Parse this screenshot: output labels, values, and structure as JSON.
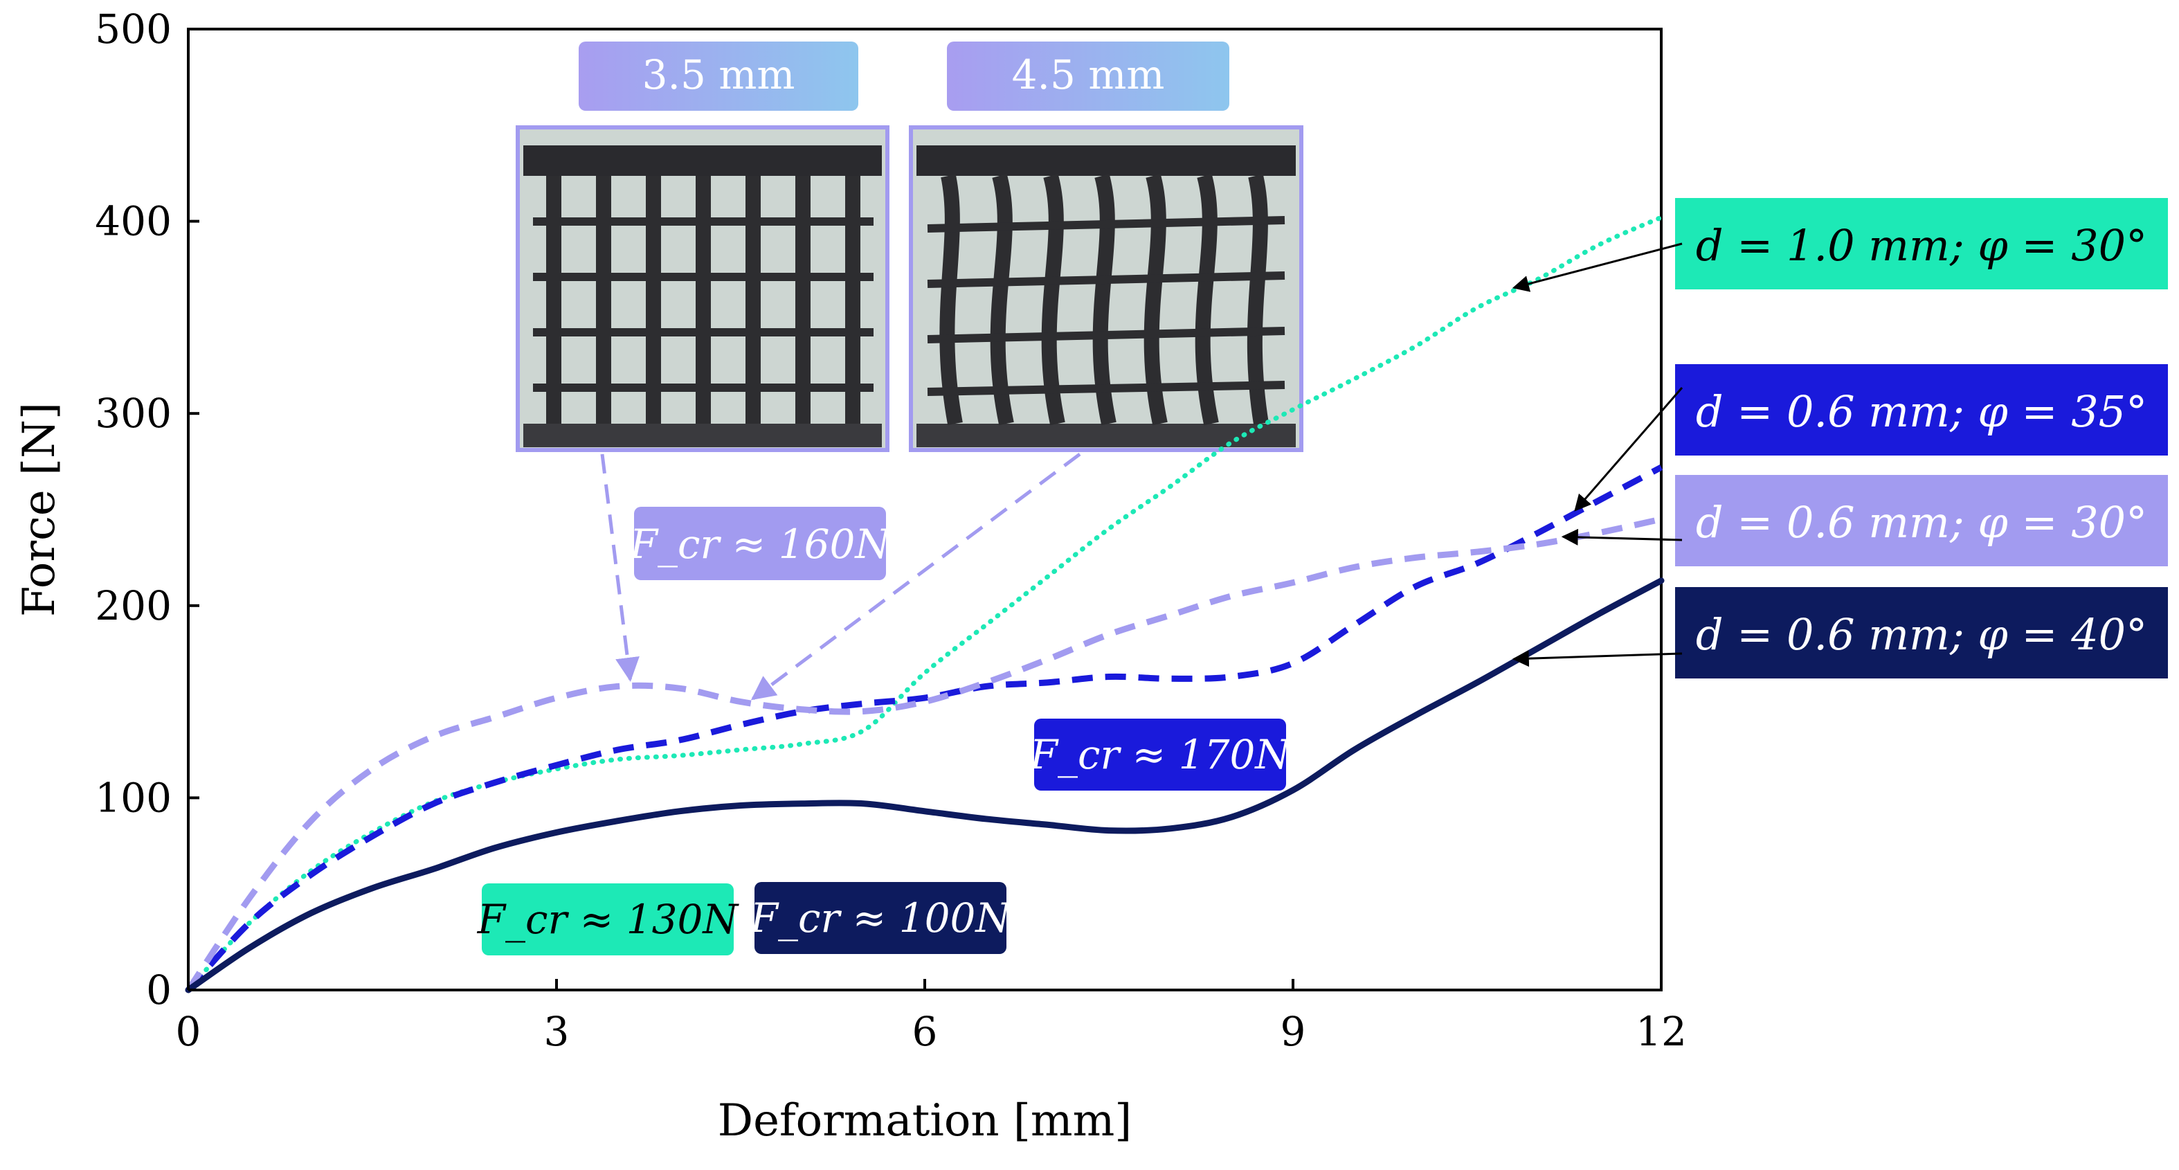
{
  "chart_data": {
    "type": "line",
    "xlabel": "Deformation [mm]",
    "ylabel": "Force [N]",
    "xlim": [
      0,
      12
    ],
    "ylim": [
      0,
      500
    ],
    "xticks": [
      0,
      3,
      6,
      9,
      12
    ],
    "yticks": [
      0,
      100,
      200,
      300,
      400,
      500
    ],
    "grid": false,
    "series": [
      {
        "name": "d = 1.0 mm; φ = 30°",
        "color": "#1de9b6",
        "style": "dotted",
        "x": [
          0,
          0.5,
          1,
          1.5,
          2,
          2.5,
          3,
          3.5,
          4,
          4.5,
          5,
          5.5,
          6,
          6.5,
          7,
          7.5,
          8,
          8.5,
          9,
          9.5,
          10,
          10.5,
          11,
          11.5,
          12
        ],
        "y": [
          0,
          35,
          62,
          82,
          98,
          108,
          115,
          120,
          122,
          125,
          128,
          135,
          165,
          190,
          215,
          240,
          262,
          285,
          302,
          318,
          335,
          355,
          370,
          388,
          402
        ]
      },
      {
        "name": "d = 0.6 mm; φ = 35°",
        "color": "#1a1adb",
        "style": "dashed",
        "x": [
          0,
          0.5,
          1,
          1.5,
          2,
          2.5,
          3,
          3.5,
          4,
          4.5,
          5,
          5.5,
          6,
          6.5,
          7,
          7.5,
          8,
          8.5,
          9,
          9.5,
          10,
          10.5,
          11,
          11.5,
          12
        ],
        "y": [
          0,
          35,
          60,
          80,
          97,
          108,
          117,
          125,
          130,
          138,
          145,
          149,
          152,
          158,
          160,
          163,
          162,
          163,
          170,
          190,
          210,
          222,
          238,
          255,
          272
        ]
      },
      {
        "name": "d = 0.6 mm; φ = 30°",
        "color": "#a29bf0",
        "style": "dashed",
        "x": [
          0,
          0.5,
          1,
          1.5,
          2,
          2.5,
          3,
          3.5,
          4,
          4.5,
          5,
          5.5,
          6,
          6.5,
          7,
          7.5,
          8,
          8.5,
          9,
          9.5,
          10,
          10.5,
          11,
          11.5,
          12
        ],
        "y": [
          0,
          48,
          88,
          115,
          132,
          142,
          152,
          158,
          157,
          150,
          146,
          145,
          150,
          160,
          172,
          185,
          195,
          205,
          212,
          220,
          225,
          228,
          232,
          238,
          245
        ]
      },
      {
        "name": "d = 0.6 mm; φ = 40°",
        "color": "#0d1b5e",
        "style": "solid",
        "x": [
          0,
          0.5,
          1,
          1.5,
          2,
          2.5,
          3,
          3.5,
          4,
          4.5,
          5,
          5.5,
          6,
          6.5,
          7,
          7.5,
          8,
          8.5,
          9,
          9.5,
          10,
          10.5,
          11,
          11.5,
          12
        ],
        "y": [
          0,
          22,
          40,
          53,
          63,
          74,
          82,
          88,
          93,
          96,
          97,
          97,
          93,
          89,
          86,
          83,
          84,
          90,
          104,
          125,
          143,
          160,
          178,
          196,
          213
        ]
      }
    ],
    "legend_labels": [
      {
        "series": 0,
        "text": "d = 1.0 mm; φ = 30°",
        "bg": "#1de9b6",
        "fg": "#000000"
      },
      {
        "series": 1,
        "text": "d = 0.6 mm; φ = 35°",
        "bg": "#1a1adb",
        "fg": "#ffffff"
      },
      {
        "series": 2,
        "text": "d = 0.6 mm; φ = 30°",
        "bg": "#a29bf0",
        "fg": "#ffffff"
      },
      {
        "series": 3,
        "text": "d = 0.6 mm; φ = 40°",
        "bg": "#0d1b5e",
        "fg": "#ffffff"
      }
    ],
    "annotations": [
      {
        "text": "F_cr ≈ 160N",
        "bg": "#a29bf0",
        "fg": "#ffffff"
      },
      {
        "text": "F_cr ≈ 170N",
        "bg": "#1a1adb",
        "fg": "#ffffff"
      },
      {
        "text": "F_cr ≈ 130N",
        "bg": "#1de9b6",
        "fg": "#000000"
      },
      {
        "text": "F_cr ≈ 100N",
        "bg": "#0d1b5e",
        "fg": "#ffffff"
      }
    ],
    "photo_labels": [
      "3.5 mm",
      "4.5 mm"
    ]
  }
}
